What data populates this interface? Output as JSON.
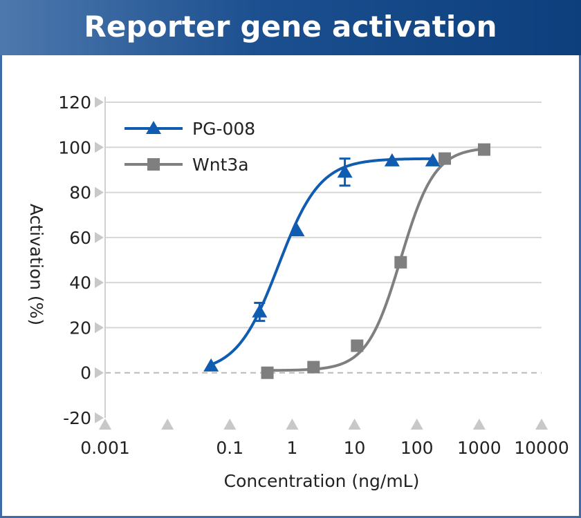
{
  "header": {
    "title": "Reporter gene activation"
  },
  "colors": {
    "pg008": "#0f5cb0",
    "wnt3a": "#7f7f7f",
    "grid": "#d6d6d6",
    "zero_line": "#b9b9b9",
    "tick_marker": "#c8c8c8",
    "header_bg": "#1b4f8f"
  },
  "chart_data": {
    "type": "scatter",
    "xlabel": "Concentration (ng/mL)",
    "ylabel": "Activation (%)",
    "x_scale": "log",
    "xlim": [
      0.001,
      10000
    ],
    "ylim": [
      -20,
      120
    ],
    "x_ticks": [
      "0.001",
      "0.1",
      "1",
      "10",
      "100",
      "1000",
      "10000"
    ],
    "x_tick_values": [
      0.001,
      0.1,
      1,
      10,
      100,
      1000,
      10000
    ],
    "y_ticks": [
      "-20",
      "0",
      "20",
      "40",
      "60",
      "80",
      "100",
      "120"
    ],
    "y_tick_values": [
      -20,
      0,
      20,
      40,
      60,
      80,
      100,
      120
    ],
    "grid": true,
    "legend_position": "top-left",
    "series": [
      {
        "name": "PG-008",
        "marker": "triangle",
        "color": "#0f5cb0",
        "x": [
          0.05,
          0.3,
          1.2,
          7,
          40,
          180
        ],
        "y": [
          3,
          27,
          63,
          89,
          94,
          94
        ],
        "error": [
          0,
          4,
          0,
          6,
          0,
          0
        ],
        "fit": {
          "bottom": 0,
          "top": 95,
          "ec50": 0.6,
          "hill": 1.3
        }
      },
      {
        "name": "Wnt3a",
        "marker": "square",
        "color": "#7f7f7f",
        "x": [
          0.4,
          2.2,
          11,
          55,
          280,
          1200
        ],
        "y": [
          0,
          2.5,
          12,
          49,
          95,
          99
        ],
        "error": [
          0,
          0,
          0,
          0,
          0,
          0
        ],
        "fit": {
          "bottom": 1,
          "top": 100,
          "ec50": 55,
          "hill": 1.6
        }
      }
    ]
  }
}
